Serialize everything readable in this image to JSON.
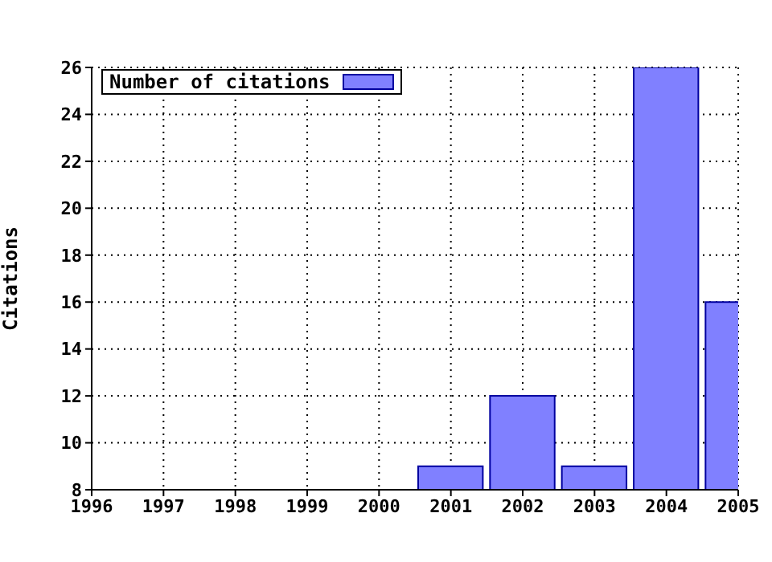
{
  "chart_data": {
    "type": "bar",
    "ylabel": "Citations",
    "x": [
      2001,
      2002,
      2003,
      2004,
      2005
    ],
    "series": [
      {
        "name": "Number of citations",
        "color": "#8080ff",
        "values": [
          9,
          12,
          9,
          26,
          16
        ]
      }
    ],
    "xlim": [
      1996,
      2005
    ],
    "xticks": [
      1996,
      1997,
      1998,
      1999,
      2000,
      2001,
      2002,
      2003,
      2004,
      2005
    ],
    "ylim": [
      8,
      26
    ],
    "yticks": [
      8,
      10,
      12,
      14,
      16,
      18,
      20,
      22,
      24,
      26
    ],
    "grid": true,
    "legend": "top left"
  }
}
